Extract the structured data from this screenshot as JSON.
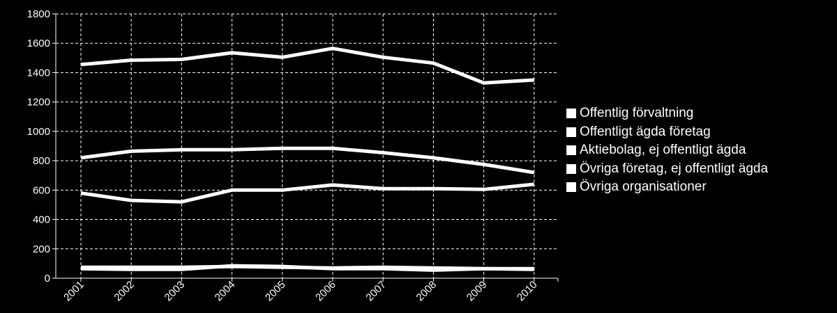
{
  "chart_data": {
    "type": "line",
    "title": "",
    "xlabel": "",
    "ylabel": "",
    "categories": [
      "2001",
      "2002",
      "2003",
      "2004",
      "2005",
      "2006",
      "2007",
      "2008",
      "2009",
      "2010"
    ],
    "ylim": [
      0,
      1800
    ],
    "yticks": [
      0,
      200,
      400,
      600,
      800,
      1000,
      1200,
      1400,
      1600,
      1800
    ],
    "grid": true,
    "legend_position": "right",
    "colors": {
      "background": "#000000",
      "foreground": "#ffffff"
    },
    "series": [
      {
        "name": "Offentlig förvaltning",
        "values": [
          1455,
          1485,
          1490,
          1535,
          1505,
          1565,
          1505,
          1465,
          1330,
          1350
        ]
      },
      {
        "name": "Offentligt ägda företag",
        "values": [
          820,
          865,
          875,
          875,
          885,
          885,
          855,
          820,
          775,
          720
        ]
      },
      {
        "name": "Aktiebolag, ej offentligt ägda",
        "values": [
          580,
          530,
          520,
          600,
          600,
          635,
          610,
          610,
          605,
          640
        ]
      },
      {
        "name": "Övriga företag, ej offentligt ägda",
        "values": [
          75,
          75,
          75,
          80,
          75,
          70,
          75,
          70,
          65,
          65
        ]
      },
      {
        "name": "Övriga organisationer",
        "values": [
          65,
          60,
          60,
          85,
          80,
          65,
          65,
          55,
          65,
          60
        ]
      }
    ]
  }
}
